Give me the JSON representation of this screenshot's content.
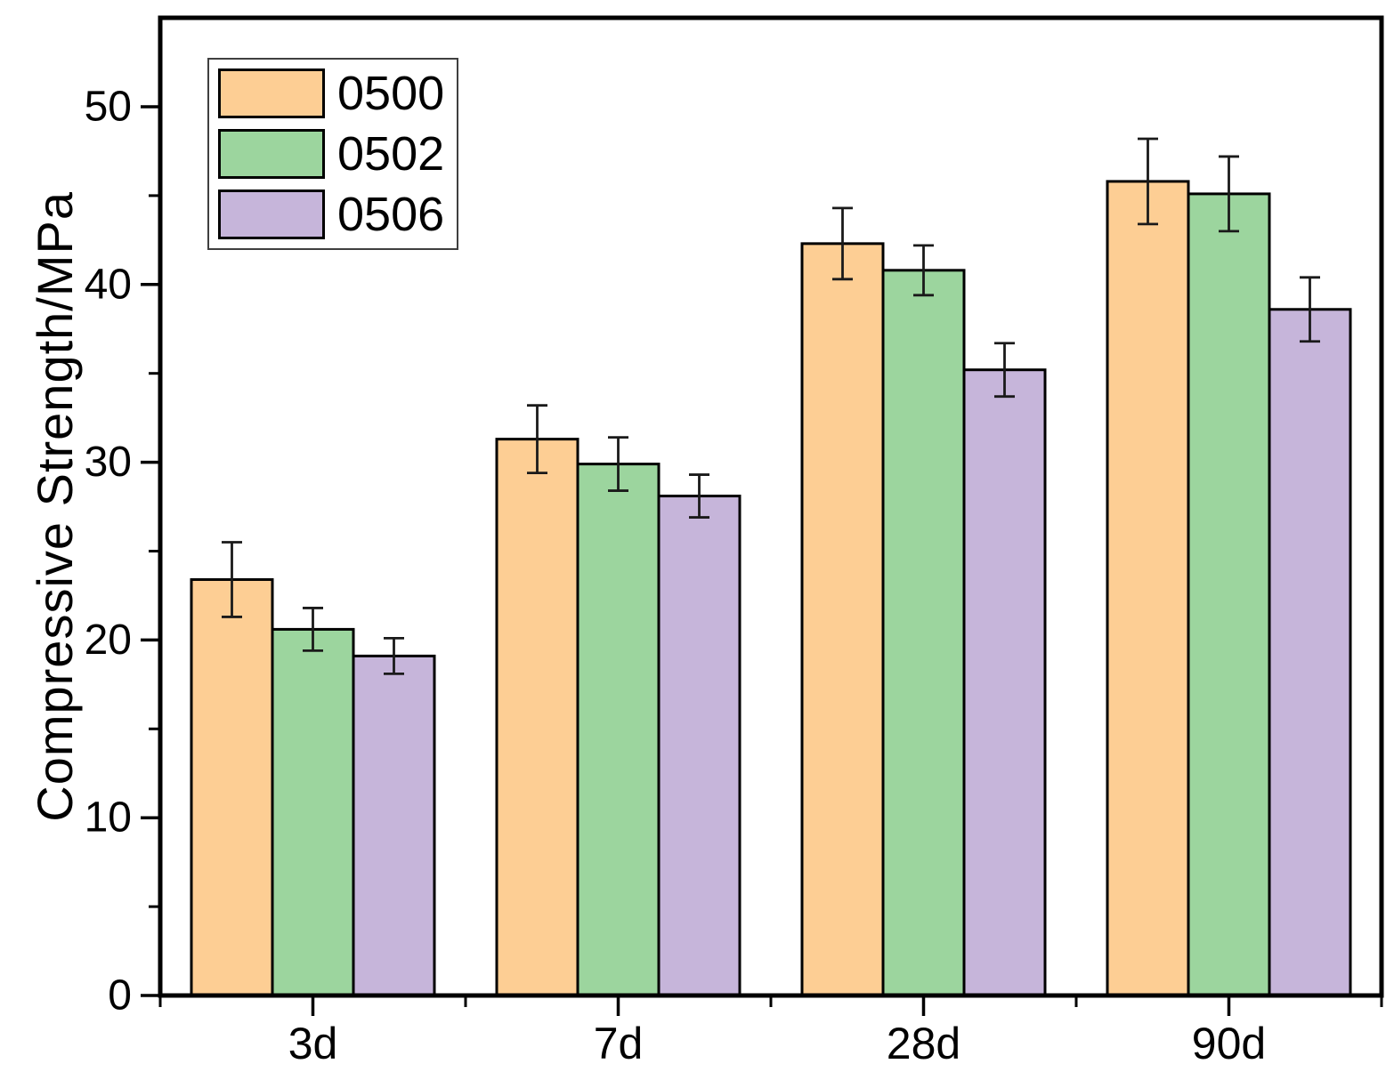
{
  "chart_data": {
    "type": "bar",
    "title": "",
    "xlabel": "",
    "ylabel": "Compressive Strength/MPa",
    "categories": [
      "3d",
      "7d",
      "28d",
      "90d"
    ],
    "series": [
      {
        "name": "0500",
        "color": "#FDCE94",
        "values": [
          23.4,
          31.3,
          42.3,
          45.8
        ],
        "errors": [
          2.1,
          1.9,
          2.0,
          2.4
        ]
      },
      {
        "name": "0502",
        "color": "#9CD59E",
        "values": [
          20.6,
          29.9,
          40.8,
          45.1
        ],
        "errors": [
          1.2,
          1.5,
          1.4,
          2.1
        ]
      },
      {
        "name": "0506",
        "color": "#C6B5DA",
        "values": [
          19.1,
          28.1,
          35.2,
          38.6
        ],
        "errors": [
          1.0,
          1.2,
          1.5,
          1.8
        ]
      }
    ],
    "ylim": [
      0,
      55
    ],
    "yticks_major": [
      0,
      10,
      20,
      30,
      40,
      50
    ],
    "yticks_minor": [
      5,
      15,
      25,
      35,
      45
    ],
    "grid": false,
    "legend_position": "top-left",
    "frame": true,
    "bar_border_color": "#000000",
    "error_bar_color": "#1a1a1a",
    "axis_color": "#000000"
  }
}
